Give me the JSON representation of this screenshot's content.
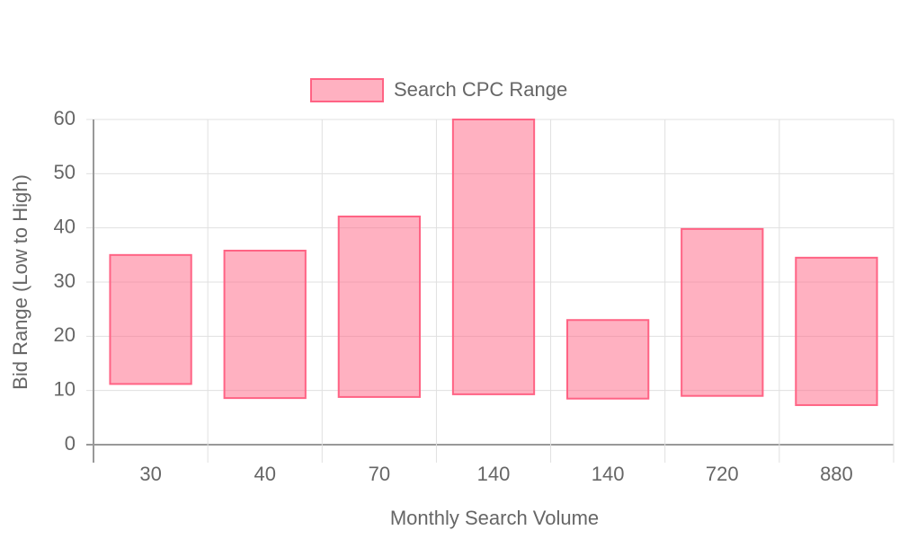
{
  "chart_data": {
    "type": "floating-bar",
    "categories": [
      "30",
      "40",
      "70",
      "140",
      "140",
      "720",
      "880"
    ],
    "series": [
      {
        "name": "Search CPC Range",
        "color": "#ff6384",
        "values": [
          [
            11.2,
            35
          ],
          [
            8.6,
            35.8
          ],
          [
            8.8,
            42.1
          ],
          [
            9.3,
            60
          ],
          [
            8.5,
            23
          ],
          [
            9,
            39.8
          ],
          [
            7.3,
            34.5
          ]
        ]
      }
    ],
    "x_label": "Monthly Search Volume",
    "y_label": "Bid Range (Low to High)",
    "ylim": [
      0,
      60
    ],
    "yticks": [
      0,
      10,
      20,
      30,
      40,
      50,
      60
    ],
    "grid": true,
    "legend": "top"
  }
}
